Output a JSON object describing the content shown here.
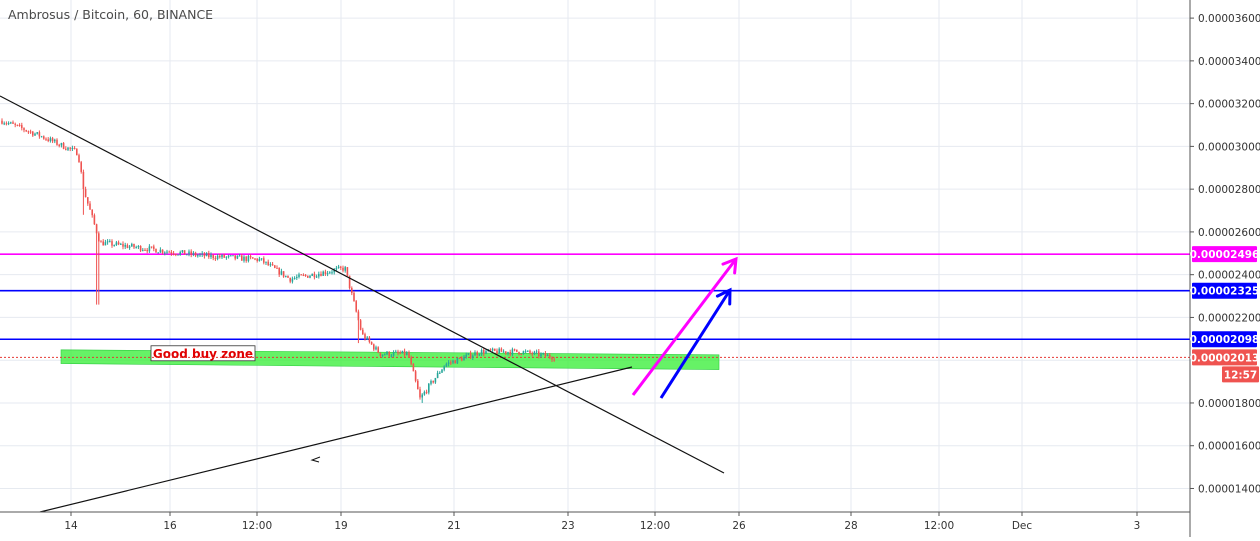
{
  "chart_data": {
    "type": "candlestick",
    "title": "Ambrosus / Bitcoin, 60, BINANCE",
    "price_axis": {
      "ticks": [
        "0.00001400",
        "0.00001600",
        "0.00001800",
        "0.00002200",
        "0.00002400",
        "0.00002600",
        "0.00002800",
        "0.00003000",
        "0.00003200",
        "0.00003400",
        "0.00003600"
      ],
      "ylim": [
        1.29e-05,
        3.68e-05
      ]
    },
    "time_axis": {
      "ticks": [
        "14",
        "16",
        "12:00",
        "19",
        "21",
        "23",
        "12:00",
        "26",
        "28",
        "12:00",
        "Dec",
        "3"
      ]
    },
    "price_labels": [
      {
        "text": "0.00002496",
        "color": "#ff00ff"
      },
      {
        "text": "0.00002325",
        "color": "#0000ff"
      },
      {
        "text": "0.00002098",
        "color": "#0000ff"
      },
      {
        "text": "0.00002013",
        "color": "#ef5350"
      },
      {
        "text": "12:57",
        "color": "#ef5350"
      }
    ],
    "horizontal_lines": [
      {
        "value": 2.496e-05,
        "color": "#ff00ff"
      },
      {
        "value": 2.325e-05,
        "color": "#0000ff"
      },
      {
        "value": 2.098e-05,
        "color": "#0000ff"
      },
      {
        "value": 2.013e-05,
        "color": "#e53935",
        "dashed": true
      }
    ],
    "zone": {
      "label": "Good buy zone",
      "low": 1.97e-05,
      "high": 2.03e-05,
      "color": "#33ee33"
    },
    "annotations": [
      {
        "kind": "trendline",
        "name": "descending-trendline"
      },
      {
        "kind": "trendline",
        "name": "ascending-trendline"
      },
      {
        "kind": "arrow",
        "name": "magenta-target-arrow",
        "color": "#ff00ff"
      },
      {
        "kind": "arrow",
        "name": "blue-target-arrow",
        "color": "#0000ff"
      }
    ],
    "key_prices": [
      {
        "point": "start",
        "price": 3.12e-05
      },
      {
        "point": "plateau-1",
        "price": 2.52e-05
      },
      {
        "point": "pre-drop",
        "price": 2.43e-05
      },
      {
        "point": "drop-low",
        "price": 1.82e-05
      },
      {
        "point": "range",
        "price": 2.03e-05
      },
      {
        "point": "last",
        "price": 2.013e-05
      }
    ],
    "colors": {
      "up": "#26a69a",
      "down": "#ef5350",
      "grid": "#e6eaf0"
    },
    "grid": true
  }
}
